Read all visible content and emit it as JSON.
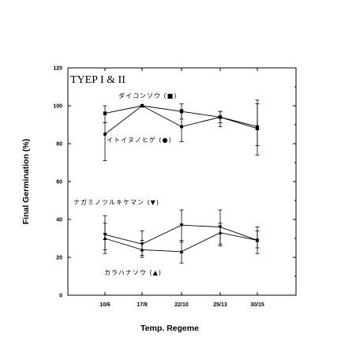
{
  "chart_data": {
    "type": "line",
    "title": "TYEP I & II",
    "xlabel": "Temp. Regeme",
    "ylabel": "Final Germination (%)",
    "categories": [
      "10/6",
      "17/8",
      "22/10",
      "25/13",
      "30/15"
    ],
    "ylim": [
      0,
      120
    ],
    "yticks": [
      0,
      20,
      40,
      60,
      80,
      100,
      120
    ],
    "grid": false,
    "legend": "inline-labels",
    "series": [
      {
        "name": "ダイコンソウ (■)",
        "marker": "square",
        "values": [
          96,
          100,
          97,
          94,
          88
        ],
        "err_high": [
          4,
          0,
          4,
          3,
          15
        ],
        "err_low": [
          5,
          0,
          4,
          3,
          14
        ]
      },
      {
        "name": "イトイヌノヒゲ (●)",
        "marker": "circle",
        "values": [
          85,
          100,
          89,
          94,
          89
        ],
        "err_high": [
          6,
          0,
          9,
          3,
          12
        ],
        "err_low": [
          14,
          0,
          8,
          5,
          10
        ]
      },
      {
        "name": "ナガミノツルキケマン (▼)",
        "marker": "triangle-down",
        "values": [
          32,
          27,
          37,
          36,
          29
        ],
        "err_high": [
          10,
          7,
          8,
          9,
          7
        ],
        "err_low": [
          8,
          6,
          9,
          10,
          7
        ]
      },
      {
        "name": "カラハナソウ (▲)",
        "marker": "triangle-up",
        "values": [
          30,
          24,
          23,
          33,
          29
        ],
        "err_high": [
          8,
          5,
          6,
          5,
          5
        ],
        "err_low": [
          8,
          4,
          6,
          6,
          4
        ]
      }
    ]
  }
}
